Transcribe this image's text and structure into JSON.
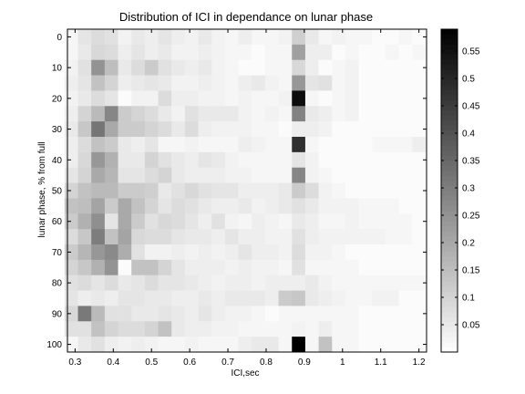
{
  "chart_data": {
    "type": "heatmap",
    "title": "Distribution of ICI in dependance on lunar phase",
    "xlabel": "ICI,sec",
    "ylabel": "lunar phase, % from full",
    "x_ticks": [
      "0.3",
      "0.4",
      "0.5",
      "0.6",
      "0.7",
      "0.8",
      "0.9",
      "1",
      "1.1",
      "1.2"
    ],
    "y_ticks": [
      "0",
      "10",
      "20",
      "30",
      "40",
      "50",
      "60",
      "70",
      "80",
      "90",
      "100"
    ],
    "xlim": [
      0.28,
      1.22
    ],
    "ylim": [
      -2.5,
      102.5
    ],
    "x_centers": [
      0.29,
      0.325,
      0.36,
      0.395,
      0.43,
      0.465,
      0.5,
      0.535,
      0.57,
      0.605,
      0.64,
      0.675,
      0.71,
      0.745,
      0.78,
      0.815,
      0.85,
      0.885,
      0.92,
      0.955,
      0.99,
      1.025,
      1.06,
      1.095,
      1.13,
      1.165,
      1.2
    ],
    "y_centers": [
      0,
      5,
      10,
      15,
      20,
      25,
      30,
      35,
      40,
      45,
      50,
      55,
      60,
      65,
      70,
      75,
      80,
      85,
      90,
      95,
      100
    ],
    "colormap": "gray (0 = white, max = black)",
    "colorbar": {
      "range": [
        0,
        0.59
      ],
      "ticks": [
        "0.05",
        "0.1",
        "0.15",
        "0.2",
        "0.25",
        "0.3",
        "0.35",
        "0.4",
        "0.45",
        "0.5",
        "0.55"
      ]
    },
    "values": [
      [
        0.02,
        0.06,
        0.08,
        0.07,
        0.03,
        0.05,
        0.04,
        0.06,
        0.04,
        0.03,
        0.05,
        0.03,
        0.02,
        0.04,
        0.02,
        0.02,
        0.03,
        0.11,
        0.05,
        0.02,
        0.03,
        0.02,
        0.02,
        0.01,
        0.01,
        0.02,
        0.01
      ],
      [
        0.02,
        0.05,
        0.09,
        0.08,
        0.04,
        0.06,
        0.04,
        0.05,
        0.03,
        0.03,
        0.04,
        0.03,
        0.02,
        0.02,
        0.01,
        0.02,
        0.02,
        0.22,
        0.04,
        0.04,
        0.01,
        0.02,
        0.01,
        0.01,
        0.02,
        0.01,
        0.02
      ],
      [
        0.03,
        0.07,
        0.25,
        0.15,
        0.05,
        0.08,
        0.12,
        0.07,
        0.05,
        0.04,
        0.05,
        0.03,
        0.02,
        0.01,
        0.01,
        0.02,
        0.02,
        0.09,
        0.04,
        0.01,
        0.02,
        0.03,
        0.01,
        0.01,
        0.01,
        0.01,
        0.01
      ],
      [
        0.04,
        0.06,
        0.14,
        0.1,
        0.04,
        0.05,
        0.06,
        0.05,
        0.03,
        0.03,
        0.04,
        0.03,
        0.02,
        0.04,
        0.05,
        0.03,
        0.02,
        0.24,
        0.06,
        0.07,
        0.02,
        0.03,
        0.01,
        0.01,
        0.01,
        0.01,
        0.01
      ],
      [
        0.03,
        0.05,
        0.08,
        0.06,
        0.01,
        0.03,
        0.03,
        0.08,
        0.04,
        0.04,
        0.03,
        0.03,
        0.02,
        0.03,
        0.02,
        0.02,
        0.03,
        0.56,
        0.02,
        0.01,
        0.02,
        0.03,
        0.01,
        0.01,
        0.01,
        0.01,
        0.01
      ],
      [
        0.04,
        0.1,
        0.16,
        0.28,
        0.12,
        0.1,
        0.08,
        0.05,
        0.03,
        0.07,
        0.05,
        0.05,
        0.05,
        0.03,
        0.02,
        0.03,
        0.02,
        0.29,
        0.05,
        0.04,
        0.02,
        0.03,
        0.01,
        0.01,
        0.01,
        0.01,
        0.01
      ],
      [
        0.05,
        0.13,
        0.32,
        0.2,
        0.12,
        0.12,
        0.1,
        0.08,
        0.05,
        0.08,
        0.04,
        0.03,
        0.03,
        0.03,
        0.02,
        0.02,
        0.01,
        0.04,
        0.04,
        0.03,
        0.01,
        0.01,
        0.01,
        0.01,
        0.01,
        0.01,
        0.01
      ],
      [
        0.04,
        0.08,
        0.14,
        0.12,
        0.05,
        0.04,
        0.06,
        0.02,
        0.02,
        0.03,
        0.02,
        0.02,
        0.02,
        0.04,
        0.03,
        0.02,
        0.02,
        0.48,
        0.02,
        0.01,
        0.01,
        0.01,
        0.01,
        0.02,
        0.02,
        0.02,
        0.04
      ],
      [
        0.04,
        0.09,
        0.24,
        0.18,
        0.05,
        0.05,
        0.1,
        0.07,
        0.05,
        0.04,
        0.06,
        0.05,
        0.03,
        0.02,
        0.02,
        0.02,
        0.02,
        0.06,
        0.03,
        0.01,
        0.01,
        0.01,
        0.01,
        0.01,
        0.01,
        0.01,
        0.01
      ],
      [
        0.06,
        0.1,
        0.2,
        0.17,
        0.06,
        0.06,
        0.08,
        0.1,
        0.05,
        0.04,
        0.04,
        0.04,
        0.03,
        0.03,
        0.02,
        0.02,
        0.02,
        0.28,
        0.03,
        0.02,
        0.01,
        0.01,
        0.01,
        0.01,
        0.01,
        0.01,
        0.01
      ],
      [
        0.1,
        0.14,
        0.16,
        0.16,
        0.12,
        0.12,
        0.11,
        0.05,
        0.07,
        0.09,
        0.07,
        0.06,
        0.06,
        0.04,
        0.04,
        0.04,
        0.05,
        0.12,
        0.08,
        0.03,
        0.02,
        0.01,
        0.01,
        0.01,
        0.01,
        0.01,
        0.01
      ],
      [
        0.14,
        0.15,
        0.21,
        0.12,
        0.2,
        0.14,
        0.1,
        0.06,
        0.08,
        0.07,
        0.05,
        0.04,
        0.04,
        0.05,
        0.03,
        0.04,
        0.05,
        0.07,
        0.05,
        0.03,
        0.03,
        0.03,
        0.02,
        0.02,
        0.02,
        0.01,
        0.01
      ],
      [
        0.12,
        0.18,
        0.26,
        0.06,
        0.2,
        0.12,
        0.07,
        0.09,
        0.08,
        0.06,
        0.04,
        0.07,
        0.03,
        0.02,
        0.04,
        0.03,
        0.02,
        0.05,
        0.04,
        0.02,
        0.02,
        0.03,
        0.02,
        0.02,
        0.02,
        0.02,
        0.01
      ],
      [
        0.08,
        0.13,
        0.3,
        0.14,
        0.21,
        0.09,
        0.08,
        0.08,
        0.06,
        0.05,
        0.05,
        0.04,
        0.06,
        0.04,
        0.04,
        0.03,
        0.03,
        0.07,
        0.04,
        0.03,
        0.03,
        0.03,
        0.03,
        0.03,
        0.02,
        0.02,
        0.01
      ],
      [
        0.12,
        0.17,
        0.24,
        0.27,
        0.19,
        0.07,
        0.03,
        0.03,
        0.04,
        0.03,
        0.04,
        0.03,
        0.04,
        0.06,
        0.04,
        0.04,
        0.03,
        0.08,
        0.03,
        0.03,
        0.02,
        0.01,
        0.01,
        0.01,
        0.01,
        0.01,
        0.01
      ],
      [
        0.1,
        0.13,
        0.18,
        0.25,
        0.01,
        0.14,
        0.14,
        0.1,
        0.06,
        0.04,
        0.04,
        0.04,
        0.03,
        0.04,
        0.03,
        0.03,
        0.02,
        0.07,
        0.02,
        0.02,
        0.02,
        0.02,
        0.01,
        0.01,
        0.01,
        0.01,
        0.01
      ],
      [
        0.07,
        0.08,
        0.06,
        0.08,
        0.05,
        0.06,
        0.08,
        0.06,
        0.06,
        0.05,
        0.04,
        0.03,
        0.04,
        0.04,
        0.03,
        0.04,
        0.04,
        0.04,
        0.05,
        0.03,
        0.02,
        0.02,
        0.02,
        0.02,
        0.02,
        0.02,
        0.02
      ],
      [
        0.06,
        0.04,
        0.05,
        0.04,
        0.06,
        0.06,
        0.05,
        0.05,
        0.04,
        0.04,
        0.05,
        0.04,
        0.05,
        0.05,
        0.05,
        0.04,
        0.12,
        0.13,
        0.05,
        0.04,
        0.03,
        0.02,
        0.02,
        0.03,
        0.03,
        0.01,
        0.01
      ],
      [
        0.09,
        0.31,
        0.16,
        0.07,
        0.07,
        0.05,
        0.05,
        0.06,
        0.05,
        0.04,
        0.06,
        0.04,
        0.03,
        0.03,
        0.02,
        0.01,
        0.02,
        0.02,
        0.02,
        0.02,
        0.02,
        0.02,
        0.01,
        0.01,
        0.01,
        0.01,
        0.01
      ],
      [
        0.07,
        0.07,
        0.14,
        0.1,
        0.08,
        0.08,
        0.1,
        0.14,
        0.05,
        0.04,
        0.04,
        0.03,
        0.03,
        0.02,
        0.02,
        0.02,
        0.02,
        0.03,
        0.02,
        0.04,
        0.02,
        0.02,
        0.01,
        0.01,
        0.01,
        0.01,
        0.01
      ],
      [
        0.02,
        0.05,
        0.07,
        0.04,
        0.03,
        0.04,
        0.03,
        0.02,
        0.02,
        0.03,
        0.02,
        0.02,
        0.02,
        0.04,
        0.05,
        0.05,
        0.02,
        0.59,
        0.02,
        0.14,
        0.02,
        0.02,
        0.01,
        0.01,
        0.01,
        0.01,
        0.01
      ]
    ]
  }
}
